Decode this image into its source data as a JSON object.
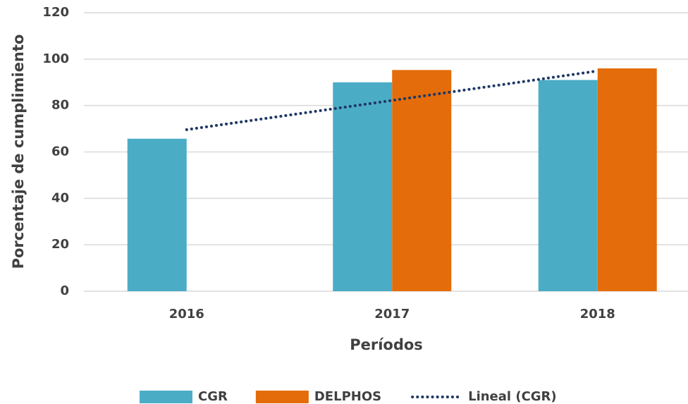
{
  "chart_data": {
    "type": "bar",
    "categories": [
      "2016",
      "2017",
      "2018"
    ],
    "series": [
      {
        "name": "CGR",
        "color": "#4bacc6",
        "values": [
          65.7,
          90,
          91
        ]
      },
      {
        "name": "DELPHOS",
        "color": "#e46c0a",
        "values": [
          null,
          95.3,
          96
        ]
      },
      {
        "name": "Lineal (CGR)",
        "color": "#1f3864",
        "kind": "line",
        "style": "dotted",
        "values": [
          69.6,
          82.2,
          94.9
        ]
      }
    ],
    "x_label": "Períodos",
    "y_label": "Porcentaje de cumplimiento",
    "ylim": [
      0,
      120
    ],
    "yticks": [
      0,
      20,
      40,
      60,
      80,
      100,
      120
    ],
    "grid": true,
    "legend": "bottom"
  }
}
